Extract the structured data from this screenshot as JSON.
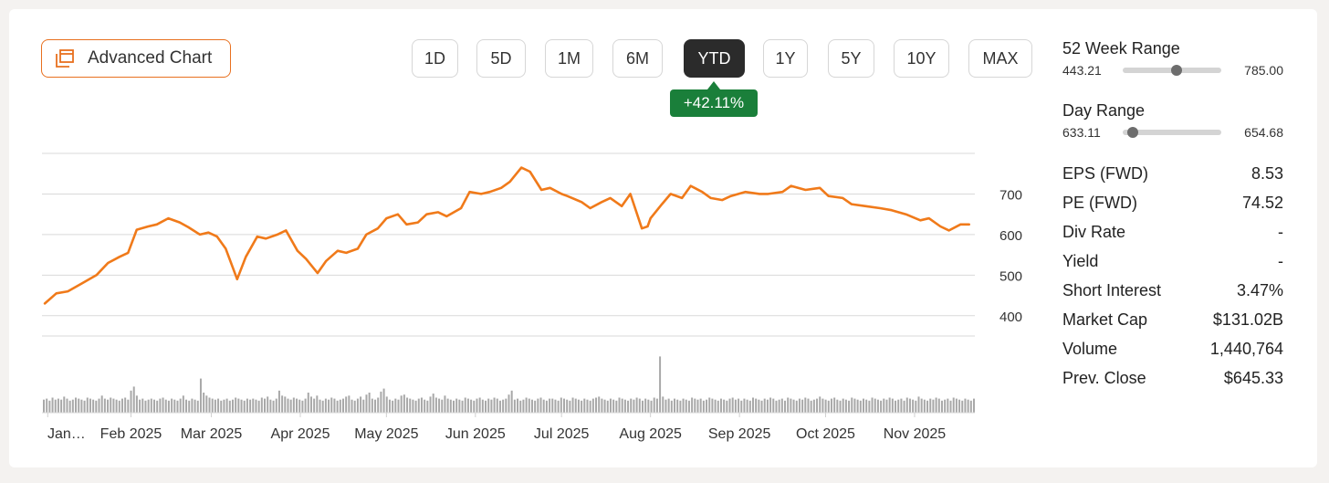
{
  "toolbar": {
    "advanced_chart_label": "Advanced Chart",
    "ranges": [
      "1D",
      "5D",
      "1M",
      "6M",
      "YTD",
      "1Y",
      "5Y",
      "10Y",
      "MAX"
    ],
    "active_range": "YTD",
    "change_badge": "+42.11%",
    "badge_color": "#1a7f3a",
    "accent_color": "#e8701f"
  },
  "stats": {
    "week52": {
      "label": "52 Week Range",
      "low": "443.21",
      "high": "785.00",
      "position": 0.55
    },
    "day": {
      "label": "Day Range",
      "low": "633.11",
      "high": "654.68",
      "position": 0.1
    },
    "rows": [
      {
        "label": "EPS (FWD)",
        "value": "8.53"
      },
      {
        "label": "PE (FWD)",
        "value": "74.52"
      },
      {
        "label": "Div Rate",
        "value": "-"
      },
      {
        "label": "Yield",
        "value": "-"
      },
      {
        "label": "Short Interest",
        "value": "3.47%"
      },
      {
        "label": "Market Cap",
        "value": "$131.02B"
      },
      {
        "label": "Volume",
        "value": "1,440,764"
      },
      {
        "label": "Prev. Close",
        "value": "$645.33"
      }
    ]
  },
  "chart_data": {
    "type": "line",
    "series": [
      {
        "color": "#f07a1a",
        "x": [
          "2025-01-02",
          "2025-01-06",
          "2025-01-10",
          "2025-01-15",
          "2025-01-20",
          "2025-01-24",
          "2025-01-28",
          "2025-01-31",
          "2025-02-03",
          "2025-02-07",
          "2025-02-10",
          "2025-02-14",
          "2025-02-18",
          "2025-02-21",
          "2025-02-25",
          "2025-02-28",
          "2025-03-03",
          "2025-03-06",
          "2025-03-10",
          "2025-03-13",
          "2025-03-17",
          "2025-03-20",
          "2025-03-24",
          "2025-03-27",
          "2025-03-31",
          "2025-04-03",
          "2025-04-07",
          "2025-04-10",
          "2025-04-14",
          "2025-04-17",
          "2025-04-21",
          "2025-04-24",
          "2025-04-28",
          "2025-05-01",
          "2025-05-05",
          "2025-05-08",
          "2025-05-12",
          "2025-05-15",
          "2025-05-19",
          "2025-05-22",
          "2025-05-27",
          "2025-05-30",
          "2025-06-03",
          "2025-06-06",
          "2025-06-10",
          "2025-06-13",
          "2025-06-17",
          "2025-06-20",
          "2025-06-24",
          "2025-06-27",
          "2025-07-01",
          "2025-07-03",
          "2025-07-08",
          "2025-07-11",
          "2025-07-15",
          "2025-07-18",
          "2025-07-22",
          "2025-07-25",
          "2025-07-29",
          "2025-07-31",
          "2025-08-01",
          "2025-08-05",
          "2025-08-08",
          "2025-08-12",
          "2025-08-15",
          "2025-08-19",
          "2025-08-22",
          "2025-08-26",
          "2025-08-29",
          "2025-09-03",
          "2025-09-08",
          "2025-09-11",
          "2025-09-16",
          "2025-09-19",
          "2025-09-24",
          "2025-09-29",
          "2025-10-02",
          "2025-10-07",
          "2025-10-10",
          "2025-10-15",
          "2025-10-20",
          "2025-10-24",
          "2025-10-29",
          "2025-11-03",
          "2025-11-06",
          "2025-11-10",
          "2025-11-13",
          "2025-11-17",
          "2025-11-20"
        ],
        "values": [
          430,
          455,
          460,
          480,
          500,
          530,
          545,
          555,
          612,
          620,
          625,
          640,
          630,
          618,
          600,
          605,
          595,
          565,
          490,
          545,
          595,
          590,
          600,
          610,
          560,
          540,
          505,
          535,
          560,
          555,
          565,
          600,
          615,
          640,
          650,
          625,
          630,
          650,
          655,
          645,
          665,
          705,
          700,
          705,
          715,
          730,
          765,
          755,
          710,
          715,
          700,
          695,
          680,
          665,
          680,
          690,
          670,
          700,
          615,
          620,
          640,
          675,
          700,
          690,
          720,
          705,
          690,
          685,
          695,
          705,
          700,
          700,
          705,
          720,
          710,
          715,
          695,
          690,
          675,
          670,
          665,
          660,
          650,
          635,
          640,
          620,
          610,
          625,
          625
        ]
      }
    ],
    "volume": [
      13,
      14,
      12,
      15,
      13,
      14,
      13,
      16,
      14,
      12,
      13,
      15,
      14,
      13,
      12,
      15,
      14,
      13,
      12,
      14,
      17,
      14,
      13,
      15,
      14,
      13,
      12,
      14,
      15,
      13,
      22,
      26,
      17,
      13,
      14,
      12,
      13,
      14,
      13,
      12,
      14,
      15,
      13,
      12,
      14,
      13,
      12,
      14,
      17,
      13,
      12,
      14,
      13,
      12,
      34,
      20,
      17,
      15,
      14,
      13,
      14,
      12,
      13,
      14,
      12,
      13,
      15,
      14,
      13,
      12,
      14,
      13,
      14,
      13,
      12,
      15,
      14,
      16,
      13,
      12,
      14,
      22,
      17,
      16,
      14,
      13,
      15,
      14,
      13,
      12,
      14,
      20,
      16,
      14,
      17,
      13,
      12,
      14,
      13,
      15,
      14,
      12,
      13,
      14,
      16,
      17,
      13,
      12,
      14,
      16,
      13,
      18,
      20,
      14,
      13,
      15,
      21,
      24,
      16,
      13,
      12,
      14,
      13,
      17,
      18,
      15,
      14,
      13,
      12,
      14,
      15,
      13,
      12,
      16,
      19,
      15,
      14,
      13,
      17,
      14,
      13,
      12,
      14,
      13,
      12,
      15,
      14,
      13,
      12,
      14,
      15,
      13,
      12,
      14,
      13,
      15,
      14,
      12,
      13,
      14,
      18,
      22,
      13,
      14,
      12,
      13,
      15,
      14,
      13,
      12,
      14,
      15,
      13,
      12,
      14,
      14,
      13,
      12,
      15,
      14,
      13,
      12,
      15,
      14,
      13,
      12,
      14,
      13,
      12,
      14,
      15,
      16,
      14,
      13,
      12,
      14,
      13,
      12,
      15,
      14,
      13,
      12,
      14,
      13,
      15,
      14,
      12,
      14,
      13,
      12,
      15,
      14,
      56,
      16,
      13,
      14,
      12,
      14,
      13,
      12,
      14,
      13,
      12,
      15,
      14,
      13,
      14,
      12,
      13,
      15,
      14,
      13,
      12,
      14,
      13,
      12,
      14,
      15,
      13,
      14,
      12,
      14,
      13,
      12,
      15,
      14,
      13,
      12,
      14,
      13,
      15,
      14,
      12,
      13,
      14,
      12,
      15,
      14,
      13,
      12,
      14,
      13,
      15,
      14,
      12,
      13,
      14,
      16,
      14,
      13,
      12,
      14,
      15,
      13,
      12,
      14,
      13,
      12,
      15,
      14,
      13,
      12,
      14,
      13,
      12,
      15,
      14,
      13,
      12,
      14,
      13,
      15,
      14,
      12,
      13,
      14,
      12,
      15,
      14,
      13,
      12,
      16,
      14,
      13,
      12,
      14,
      13,
      15,
      14,
      12,
      13,
      14,
      12,
      15,
      14,
      13,
      12,
      14,
      13,
      12,
      14
    ],
    "y_ticks": [
      400,
      500,
      600,
      700
    ],
    "ylim": [
      350,
      800
    ],
    "xlim": [
      "2025-01-01",
      "2025-11-22"
    ],
    "x_ticks": [
      {
        "label": "Jan…",
        "date": "2025-01-03"
      },
      {
        "label": "Feb 2025",
        "date": "2025-02-01"
      },
      {
        "label": "Mar 2025",
        "date": "2025-03-01"
      },
      {
        "label": "Apr 2025",
        "date": "2025-04-01"
      },
      {
        "label": "May 2025",
        "date": "2025-05-01"
      },
      {
        "label": "Jun 2025",
        "date": "2025-06-01"
      },
      {
        "label": "Jul 2025",
        "date": "2025-07-01"
      },
      {
        "label": "Aug 2025",
        "date": "2025-08-01"
      },
      {
        "label": "Sep 2025",
        "date": "2025-09-01"
      },
      {
        "label": "Oct 2025",
        "date": "2025-10-01"
      },
      {
        "label": "Nov 2025",
        "date": "2025-11-01"
      }
    ],
    "grid": true
  }
}
